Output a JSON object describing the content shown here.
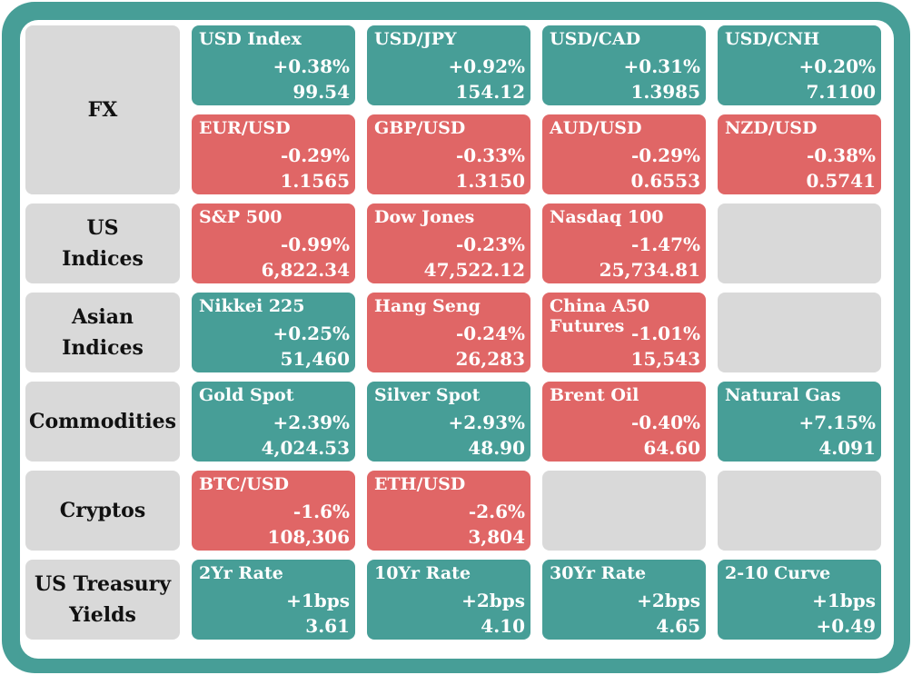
{
  "colors": {
    "frame": "#479e97",
    "positive": "#479e97",
    "negative": "#e06666",
    "category": "#d9d9d9",
    "empty": "#d9d9d9"
  },
  "categories": {
    "fx": "FX",
    "us_indices": "US\nIndices",
    "asian_indices": "Asian\nIndices",
    "commodities": "Commodities",
    "cryptos": "Cryptos",
    "us_treasury_yields": "US Treasury\nYields"
  },
  "tiles": {
    "usd_index": {
      "name": "USD Index",
      "change": "+0.38%",
      "value": "99.54",
      "direction": "up"
    },
    "usd_jpy": {
      "name": "USD/JPY",
      "change": "+0.92%",
      "value": "154.12",
      "direction": "up"
    },
    "usd_cad": {
      "name": "USD/CAD",
      "change": "+0.31%",
      "value": "1.3985",
      "direction": "up"
    },
    "usd_cnh": {
      "name": "USD/CNH",
      "change": "+0.20%",
      "value": "7.1100",
      "direction": "up"
    },
    "eur_usd": {
      "name": "EUR/USD",
      "change": "-0.29%",
      "value": "1.1565",
      "direction": "down"
    },
    "gbp_usd": {
      "name": "GBP/USD",
      "change": "-0.33%",
      "value": "1.3150",
      "direction": "down"
    },
    "aud_usd": {
      "name": "AUD/USD",
      "change": "-0.29%",
      "value": "0.6553",
      "direction": "down"
    },
    "nzd_usd": {
      "name": "NZD/USD",
      "change": "-0.38%",
      "value": "0.5741",
      "direction": "down"
    },
    "sp500": {
      "name": "S&P 500",
      "change": "-0.99%",
      "value": "6,822.34",
      "direction": "down"
    },
    "dow_jones": {
      "name": "Dow Jones",
      "change": "-0.23%",
      "value": "47,522.12",
      "direction": "down"
    },
    "nasdaq100": {
      "name": "Nasdaq 100",
      "change": "-1.47%",
      "value": "25,734.81",
      "direction": "down"
    },
    "nikkei225": {
      "name": "Nikkei 225",
      "change": "+0.25%",
      "value": "51,460",
      "direction": "up"
    },
    "hang_seng": {
      "name": "Hang Seng",
      "change": "-0.24%",
      "value": "26,283",
      "direction": "down"
    },
    "china_a50": {
      "name": "China A50\nFutures",
      "change": "-1.01%",
      "value": "15,543",
      "direction": "down"
    },
    "gold_spot": {
      "name": "Gold Spot",
      "change": "+2.39%",
      "value": "4,024.53",
      "direction": "up"
    },
    "silver_spot": {
      "name": "Silver Spot",
      "change": "+2.93%",
      "value": "48.90",
      "direction": "up"
    },
    "brent_oil": {
      "name": "Brent Oil",
      "change": "-0.40%",
      "value": "64.60",
      "direction": "down"
    },
    "natural_gas": {
      "name": "Natural Gas",
      "change": "+7.15%",
      "value": "4.091",
      "direction": "up"
    },
    "btc_usd": {
      "name": "BTC/USD",
      "change": "-1.6%",
      "value": "108,306",
      "direction": "down"
    },
    "eth_usd": {
      "name": "ETH/USD",
      "change": "-2.6%",
      "value": "3,804",
      "direction": "down"
    },
    "yr2_rate": {
      "name": "2Yr Rate",
      "change": "+1bps",
      "value": "3.61",
      "direction": "up"
    },
    "yr10_rate": {
      "name": "10Yr Rate",
      "change": "+2bps",
      "value": "4.10",
      "direction": "up"
    },
    "yr30_rate": {
      "name": "30Yr Rate",
      "change": "+2bps",
      "value": "4.65",
      "direction": "up"
    },
    "curve_2_10": {
      "name": "2-10 Curve",
      "change": "+1bps",
      "value": "+0.49",
      "direction": "up"
    }
  }
}
